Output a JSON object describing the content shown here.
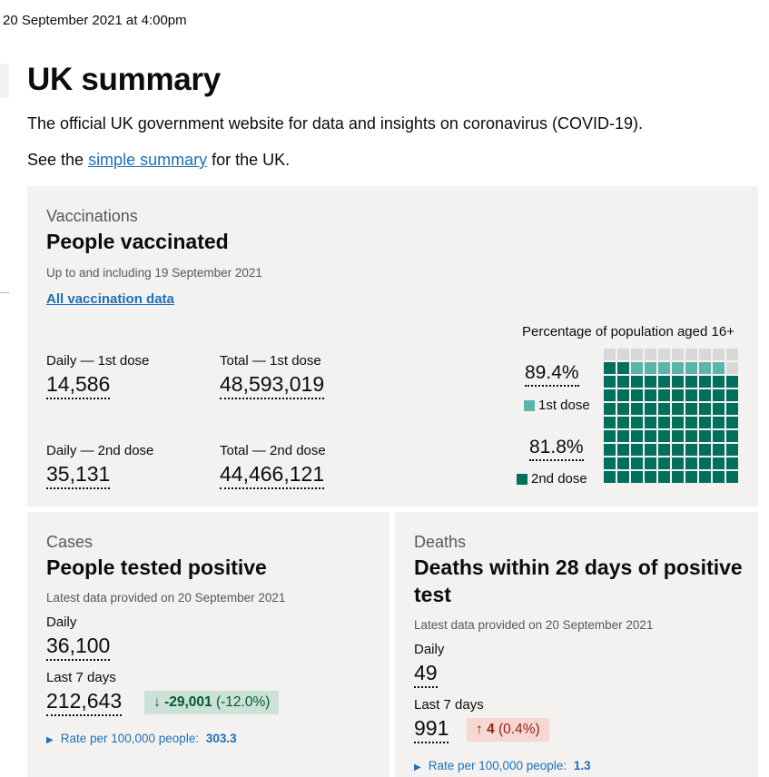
{
  "timestamp": "20 September 2021 at 4:00pm",
  "page_title": "UK summary",
  "intro": "The official UK government website for data and insights on coronavirus (COVID-19).",
  "summary": {
    "prefix": "See the ",
    "link": "simple summary",
    "suffix": " for the UK."
  },
  "vaccinations": {
    "caption": "Vaccinations",
    "heading": "People vaccinated",
    "updated": "Up to and including 19 September 2021",
    "link": "All vaccination data",
    "daily_1st_label": "Daily — 1st dose",
    "daily_1st_value": "14,586",
    "total_1st_label": "Total — 1st dose",
    "total_1st_value": "48,593,019",
    "daily_2nd_label": "Daily — 2nd dose",
    "daily_2nd_value": "35,131",
    "total_2nd_label": "Total — 2nd dose",
    "total_2nd_value": "44,466,121",
    "waffle_title": "Percentage of population aged 16+",
    "pct_1st": "89.4%",
    "pct_1st_value": 89.4,
    "legend_1st": "1st dose",
    "pct_2nd": "81.8%",
    "pct_2nd_value": 81.8,
    "legend_2nd": "2nd dose",
    "colors": {
      "dose1": "#5bb5ad",
      "dose2": "#00703c",
      "empty": "#d8d8d8",
      "dose2_shade": "#00705c"
    }
  },
  "cases": {
    "caption": "Cases",
    "heading": "People tested positive",
    "updated": "Latest data provided on 20 September 2021",
    "daily_label": "Daily",
    "daily_value": "36,100",
    "week_label": "Last 7 days",
    "week_value": "212,643",
    "change_arrow": "↓",
    "change_value": "-29,001",
    "change_pct": "(-12.0%)",
    "rate_label": "Rate per 100,000 people:",
    "rate_value": "303.3"
  },
  "deaths": {
    "caption": "Deaths",
    "heading_line1": "Deaths within 28 days of positive",
    "heading_line2": "test",
    "updated": "Latest data provided on 20 September 2021",
    "daily_label": "Daily",
    "daily_value": "49",
    "week_label": "Last 7 days",
    "week_value": "991",
    "change_arrow": "↑",
    "change_value": "4",
    "change_pct": "(0.4%)",
    "rate_label": "Rate per 100,000 people:",
    "rate_value": "1.3"
  }
}
